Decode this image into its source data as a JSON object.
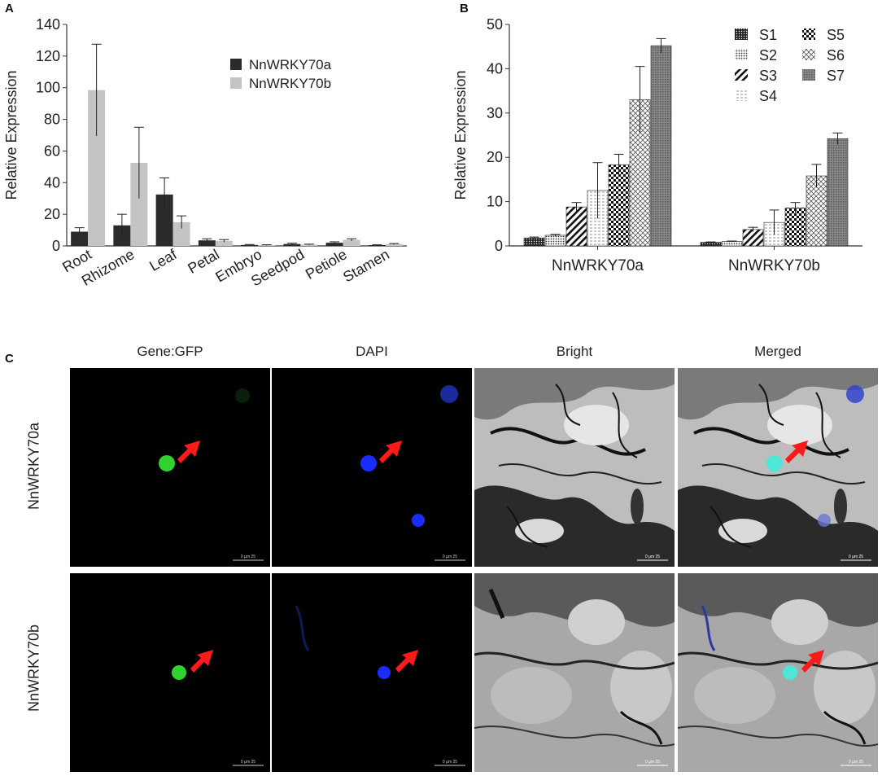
{
  "panel_labels": {
    "a": "A",
    "b": "B",
    "c": "C"
  },
  "chart_data": [
    {
      "type": "bar",
      "panel": "A",
      "categories": [
        "Root",
        "Rhizome",
        "Leaf",
        "Petal",
        "Embryo",
        "Seedpod",
        "Petiole",
        "Stamen"
      ],
      "series": [
        {
          "name": "NnWRKY70a",
          "color": "#2b2b2b",
          "values": [
            9,
            13,
            32.5,
            3.5,
            0.6,
            1.2,
            2,
            0.5
          ],
          "errors": [
            2.5,
            7,
            10.5,
            1,
            0.3,
            0.5,
            0.6,
            0.2
          ]
        },
        {
          "name": "NnWRKY70b",
          "color": "#c4c4c4",
          "values": [
            98.5,
            52.5,
            15,
            3.2,
            0.5,
            0.8,
            3.8,
            1.2
          ],
          "errors": [
            29,
            22.5,
            4,
            0.8,
            0.2,
            0.3,
            0.7,
            0.3
          ]
        }
      ],
      "ylabel": "Relative Expression",
      "ylim": [
        0,
        140
      ],
      "yticks": [
        0,
        20,
        40,
        60,
        80,
        100,
        120,
        140
      ],
      "legend": "top-right"
    },
    {
      "type": "bar",
      "panel": "B",
      "categories": [
        "NnWRKY70a",
        "NnWRKY70b"
      ],
      "series": [
        {
          "name": "S1",
          "pattern": "dots-dark",
          "values": [
            1.8,
            0.8
          ],
          "errors": [
            0.2,
            0.1
          ]
        },
        {
          "name": "S2",
          "pattern": "dots-light",
          "values": [
            2.4,
            1.0
          ],
          "errors": [
            0.2,
            0.1
          ]
        },
        {
          "name": "S3",
          "pattern": "diag-heavy",
          "values": [
            8.8,
            3.7
          ],
          "errors": [
            1.0,
            0.5
          ]
        },
        {
          "name": "S4",
          "pattern": "horiz-light",
          "values": [
            12.5,
            5.3
          ],
          "errors": [
            6.3,
            2.8
          ]
        },
        {
          "name": "S5",
          "pattern": "checker",
          "values": [
            18.3,
            8.6
          ],
          "errors": [
            2.4,
            1.2
          ]
        },
        {
          "name": "S6",
          "pattern": "crosshatch",
          "values": [
            33.0,
            15.8
          ],
          "errors": [
            7.5,
            2.6
          ]
        },
        {
          "name": "S7",
          "pattern": "grid-dark",
          "values": [
            45.2,
            24.2
          ],
          "errors": [
            1.6,
            1.3
          ]
        }
      ],
      "ylabel": "Relative Expression",
      "ylim": [
        0,
        50
      ],
      "yticks": [
        0,
        10,
        20,
        30,
        40,
        50
      ],
      "legend": "top-right"
    }
  ],
  "microscopy": {
    "columns": [
      "Gene:GFP",
      "DAPI",
      "Bright",
      "Merged"
    ],
    "rows": [
      "NnWRKY70a",
      "NnWRKY70b"
    ],
    "scale_bar_text": "0 µm 25",
    "colors": {
      "gfp": "#2fd22f",
      "dapi": "#1a2cff",
      "merged": "#4fe6d8",
      "arrow": "#ff1a1a"
    }
  }
}
